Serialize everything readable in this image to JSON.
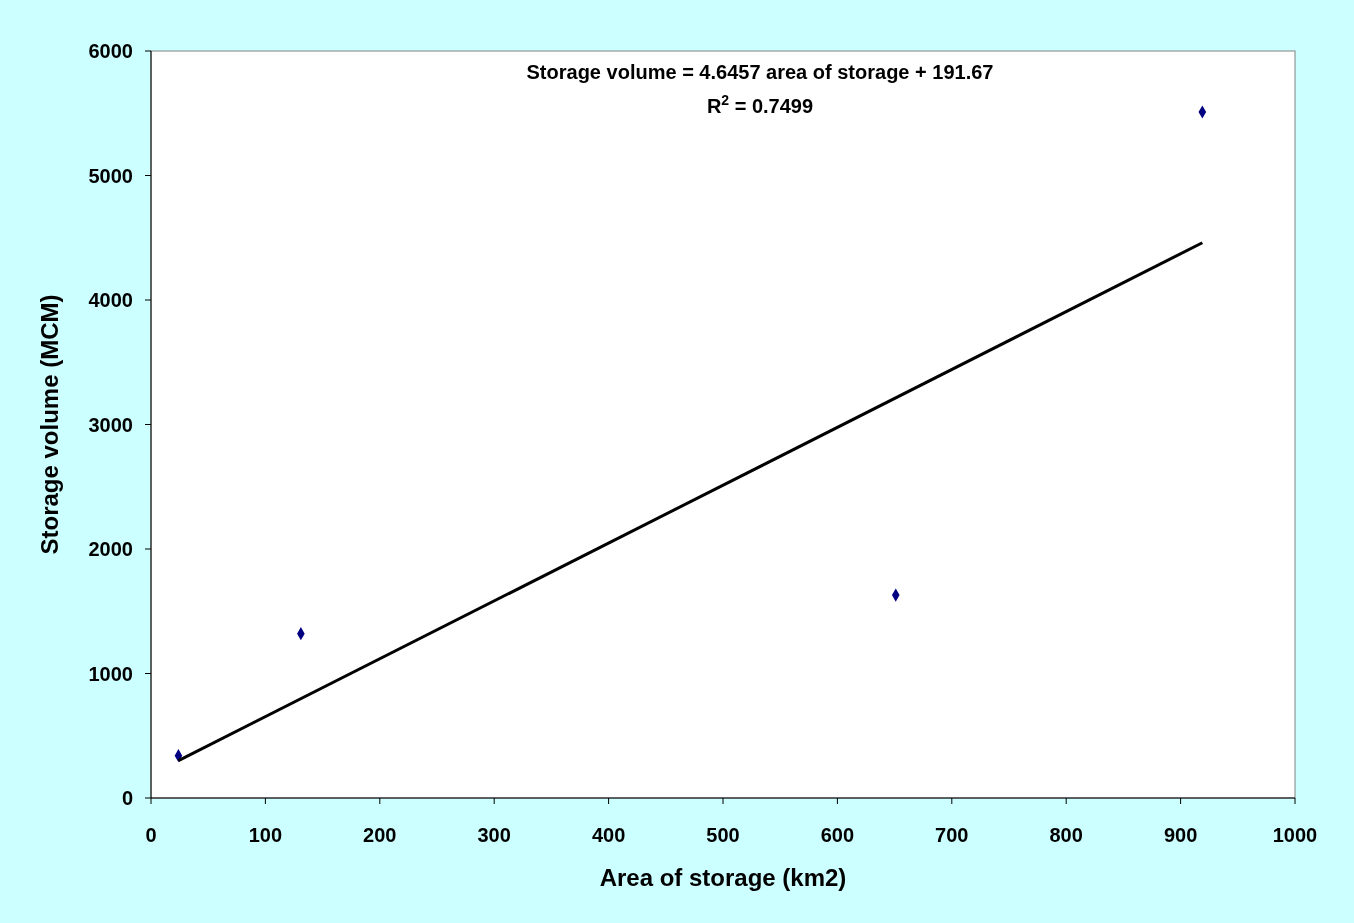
{
  "chart_data": {
    "type": "scatter",
    "xlabel": "Area of storage (km2)",
    "ylabel": "Storage volume (MCM)",
    "xlim": [
      0,
      1000
    ],
    "xticks": [
      0,
      100,
      200,
      300,
      400,
      500,
      600,
      700,
      800,
      900,
      1000
    ],
    "ylim": [
      0,
      6000
    ],
    "yticks": [
      0,
      1000,
      2000,
      3000,
      4000,
      5000,
      6000
    ],
    "annotations": [
      "Storage volume = 4.6457 area of storage + 191.67",
      "R$^{2}$ = 0.7499"
    ],
    "grid": false,
    "series": [
      {
        "color": "#000080",
        "marker": "diamond",
        "x": [
          24,
          131,
          651,
          919
        ],
        "values": [
          340,
          1320,
          1630,
          5510
        ]
      },
      {
        "type": "line",
        "color": "#000000",
        "x": [
          24,
          919
        ],
        "values": [
          300,
          4460
        ]
      }
    ]
  }
}
